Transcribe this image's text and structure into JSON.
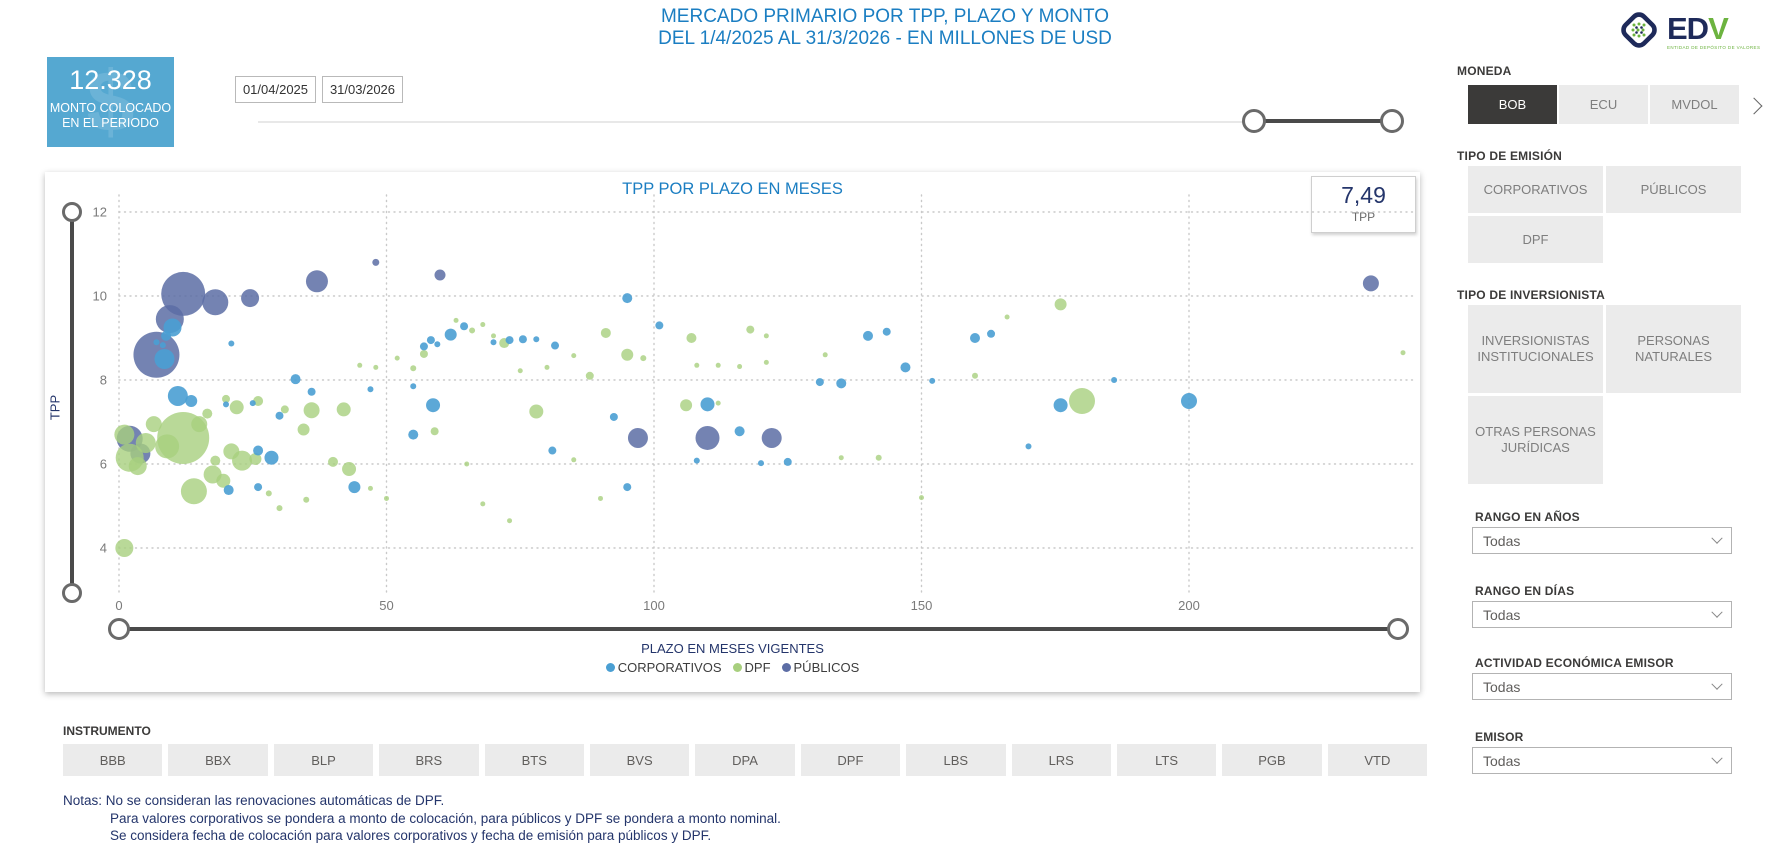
{
  "header": {
    "title_line1": "MERCADO PRIMARIO POR TPP, PLAZO Y MONTO",
    "title_line2": "DEL 1/4/2025 AL 31/3/2026 - EN MILLONES DE USD"
  },
  "logo": {
    "text_ed": "ED",
    "text_v": "V",
    "tagline": "ENTIDAD DE DEPÓSITO DE VALORES"
  },
  "kpi": {
    "value": "12.328",
    "label_line1": "MONTO COLOCADO",
    "label_line2": "EN EL PERIODO",
    "watermark": "$"
  },
  "date_range": {
    "start": "01/04/2025",
    "end": "31/03/2026"
  },
  "tpp_card": {
    "value": "7,49",
    "label": "TPP"
  },
  "chart_data": {
    "type": "scatter",
    "title": "TPP POR PLAZO EN MESES",
    "xlabel": "PLAZO EN MESES VIGENTES",
    "ylabel": "TPP",
    "xlim": [
      0,
      243
    ],
    "ylim": [
      3.4,
      12.4
    ],
    "x_ticks": [
      0,
      50,
      100,
      150,
      200
    ],
    "y_ticks": [
      12,
      10,
      8,
      6,
      4
    ],
    "grid": "dotted",
    "legend_position": "bottom",
    "size_note": "bubble radius in px encodes monto in millions USD",
    "series": [
      {
        "name": "PÚBLICOS",
        "color": "#5C6DA5",
        "opacity": 0.85,
        "points": [
          [
            7,
            8.6,
            23
          ],
          [
            12,
            10.05,
            22
          ],
          [
            9.5,
            9.45,
            14
          ],
          [
            18,
            9.85,
            13
          ],
          [
            24.5,
            9.95,
            9
          ],
          [
            37,
            10.35,
            11
          ],
          [
            60,
            10.5,
            5.5
          ],
          [
            48,
            10.8,
            3.5
          ],
          [
            2,
            6.6,
            13
          ],
          [
            4,
            6.25,
            10
          ],
          [
            97,
            6.62,
            10
          ],
          [
            110,
            6.62,
            12
          ],
          [
            122,
            6.62,
            10
          ],
          [
            234,
            10.3,
            8
          ]
        ]
      },
      {
        "name": "DPF",
        "color": "#A8CF7E",
        "opacity": 0.8,
        "points": [
          [
            1,
            6.7,
            10
          ],
          [
            2,
            6.15,
            14
          ],
          [
            3.5,
            5.95,
            9
          ],
          [
            5,
            6.5,
            10
          ],
          [
            6.5,
            6.95,
            8
          ],
          [
            9,
            6.42,
            12
          ],
          [
            12,
            6.62,
            26
          ],
          [
            15,
            6.95,
            8
          ],
          [
            16.5,
            7.2,
            5
          ],
          [
            20,
            7.55,
            4
          ],
          [
            14,
            5.35,
            13
          ],
          [
            17.5,
            5.75,
            9
          ],
          [
            19.5,
            5.6,
            7
          ],
          [
            21,
            6.3,
            8
          ],
          [
            23,
            6.08,
            10
          ],
          [
            25.5,
            6.12,
            6
          ],
          [
            28,
            5.3,
            3
          ],
          [
            1,
            4.0,
            9
          ],
          [
            18,
            6.08,
            5
          ],
          [
            22,
            7.35,
            7
          ],
          [
            26,
            7.5,
            5
          ],
          [
            31,
            7.3,
            4
          ],
          [
            36,
            7.28,
            8
          ],
          [
            34.5,
            6.82,
            6
          ],
          [
            30,
            4.95,
            3
          ],
          [
            35,
            5.15,
            3
          ],
          [
            40,
            6.05,
            5
          ],
          [
            43,
            5.88,
            7
          ],
          [
            47,
            5.42,
            2.5
          ],
          [
            50,
            5.18,
            2.5
          ],
          [
            42,
            7.3,
            7
          ],
          [
            45,
            8.35,
            2.5
          ],
          [
            48,
            8.3,
            2.5
          ],
          [
            52,
            8.52,
            2.5
          ],
          [
            55,
            8.28,
            3
          ],
          [
            57,
            8.62,
            4
          ],
          [
            59,
            6.78,
            4
          ],
          [
            63,
            9.42,
            2.5
          ],
          [
            66,
            9.18,
            3
          ],
          [
            68,
            9.32,
            2.5
          ],
          [
            70,
            9.05,
            2.5
          ],
          [
            72,
            8.88,
            5
          ],
          [
            75,
            8.22,
            2.5
          ],
          [
            78,
            7.25,
            7
          ],
          [
            80,
            8.3,
            2.5
          ],
          [
            85,
            8.58,
            2.5
          ],
          [
            88,
            8.1,
            4
          ],
          [
            91,
            9.12,
            5
          ],
          [
            95,
            8.6,
            6
          ],
          [
            98,
            8.52,
            3
          ],
          [
            65,
            6.0,
            2.5
          ],
          [
            68,
            5.05,
            2.5
          ],
          [
            73,
            4.65,
            2.5
          ],
          [
            85,
            6.1,
            2.5
          ],
          [
            90,
            5.18,
            2.5
          ],
          [
            107,
            9.0,
            5
          ],
          [
            118,
            9.2,
            4
          ],
          [
            121,
            9.05,
            2.5
          ],
          [
            108,
            8.35,
            2.5
          ],
          [
            112,
            8.35,
            2.5
          ],
          [
            116,
            8.32,
            2.5
          ],
          [
            121,
            8.42,
            2.5
          ],
          [
            132,
            8.6,
            2.5
          ],
          [
            106,
            7.4,
            6
          ],
          [
            112,
            7.45,
            2.5
          ],
          [
            135,
            6.15,
            2.5
          ],
          [
            142,
            6.15,
            3
          ],
          [
            150,
            5.2,
            2.5
          ],
          [
            160,
            8.1,
            3
          ],
          [
            166,
            9.5,
            2.5
          ],
          [
            176,
            9.8,
            6
          ],
          [
            180,
            7.5,
            13
          ],
          [
            240,
            8.65,
            2.5
          ]
        ]
      },
      {
        "name": "CORPORATIVOS",
        "color": "#4A9FD3",
        "opacity": 0.9,
        "points": [
          [
            10,
            9.25,
            9
          ],
          [
            8.8,
            9.05,
            5
          ],
          [
            8.5,
            8.5,
            10
          ],
          [
            7,
            8.9,
            3
          ],
          [
            8.2,
            8.83,
            3
          ],
          [
            21,
            8.87,
            3
          ],
          [
            11,
            7.62,
            10
          ],
          [
            13.5,
            7.5,
            6
          ],
          [
            20,
            7.42,
            3
          ],
          [
            25,
            7.45,
            3
          ],
          [
            33,
            8.02,
            5
          ],
          [
            30,
            7.15,
            4
          ],
          [
            36,
            7.72,
            4
          ],
          [
            47,
            7.78,
            3
          ],
          [
            55,
            7.85,
            3
          ],
          [
            26,
            6.32,
            5
          ],
          [
            28.5,
            6.15,
            7
          ],
          [
            20.5,
            5.38,
            5
          ],
          [
            26,
            5.45,
            4
          ],
          [
            44,
            5.45,
            6
          ],
          [
            55,
            6.7,
            5
          ],
          [
            58.7,
            7.4,
            7
          ],
          [
            57,
            8.8,
            4
          ],
          [
            59.5,
            8.85,
            3
          ],
          [
            62,
            9.08,
            6
          ],
          [
            64.5,
            9.28,
            4
          ],
          [
            58.3,
            8.95,
            4
          ],
          [
            70,
            8.9,
            3
          ],
          [
            73,
            8.95,
            4
          ],
          [
            75.5,
            8.97,
            4
          ],
          [
            78,
            8.97,
            3
          ],
          [
            81.5,
            8.82,
            4
          ],
          [
            81,
            6.32,
            4
          ],
          [
            92.5,
            7.12,
            4
          ],
          [
            95,
            9.95,
            5
          ],
          [
            101,
            9.3,
            4
          ],
          [
            110,
            7.42,
            7
          ],
          [
            116,
            6.78,
            5
          ],
          [
            108,
            6.08,
            3
          ],
          [
            120,
            6.02,
            3
          ],
          [
            125,
            6.05,
            4
          ],
          [
            131,
            7.95,
            4
          ],
          [
            135,
            7.92,
            5
          ],
          [
            140,
            9.05,
            5
          ],
          [
            143.5,
            9.15,
            4
          ],
          [
            147,
            8.3,
            5
          ],
          [
            152,
            7.98,
            3
          ],
          [
            160,
            9.0,
            5
          ],
          [
            163,
            9.1,
            4
          ],
          [
            170,
            6.42,
            3
          ],
          [
            176,
            7.4,
            7
          ],
          [
            200,
            7.5,
            8
          ],
          [
            186,
            8.0,
            3
          ],
          [
            95,
            5.45,
            4
          ]
        ]
      }
    ]
  },
  "filters": {
    "moneda": {
      "label": "MONEDA",
      "options": [
        {
          "label": "BOB",
          "selected": true
        },
        {
          "label": "ECU",
          "selected": false
        },
        {
          "label": "MVDOL",
          "selected": false
        }
      ],
      "scroll_icon": "chevron-right-icon"
    },
    "tipo_emision": {
      "label": "TIPO DE EMISIÓN",
      "options": [
        "CORPORATIVOS",
        "PÚBLICOS",
        "DPF"
      ]
    },
    "tipo_inversionista": {
      "label": "TIPO DE INVERSIONISTA",
      "options": [
        "INVERSIONISTAS INSTITUCIONALES",
        "PERSONAS NATURALES",
        "OTRAS PERSONAS JURÍDICAS"
      ]
    },
    "dropdowns": [
      {
        "label": "RANGO EN AÑOS",
        "value": "Todas"
      },
      {
        "label": "RANGO EN DÍAS",
        "value": "Todas"
      },
      {
        "label": "ACTIVIDAD ECONÓMICA EMISOR",
        "value": "Todas"
      },
      {
        "label": "EMISOR",
        "value": "Todas"
      }
    ]
  },
  "instruments": {
    "label": "INSTRUMENTO",
    "items": [
      "BBB",
      "BBX",
      "BLP",
      "BRS",
      "BTS",
      "BVS",
      "DPA",
      "DPF",
      "LBS",
      "LRS",
      "LTS",
      "PGB",
      "VTD"
    ]
  },
  "notes": {
    "prefix": "Notas:",
    "lines": [
      "No se consideran las renovaciones automáticas de DPF.",
      "Para valores corporativos se pondera a monto de colocación, para públicos y DPF se pondera a monto nominal.",
      "Se considera fecha de colocación para valores corporativos y fecha de emisión para públicos y DPF."
    ]
  },
  "colors": {
    "title_blue": "#1B7EC2",
    "kpi_bg": "#55A8D1",
    "navy_text": "#24356B",
    "selected_btn": "#3B3A39",
    "btn_bg": "#EBEBEB",
    "slider_dark": "#4A4A4A",
    "corporativos": "#4A9FD3",
    "dpf": "#A8CF7E",
    "publicos": "#5C6DA5"
  }
}
